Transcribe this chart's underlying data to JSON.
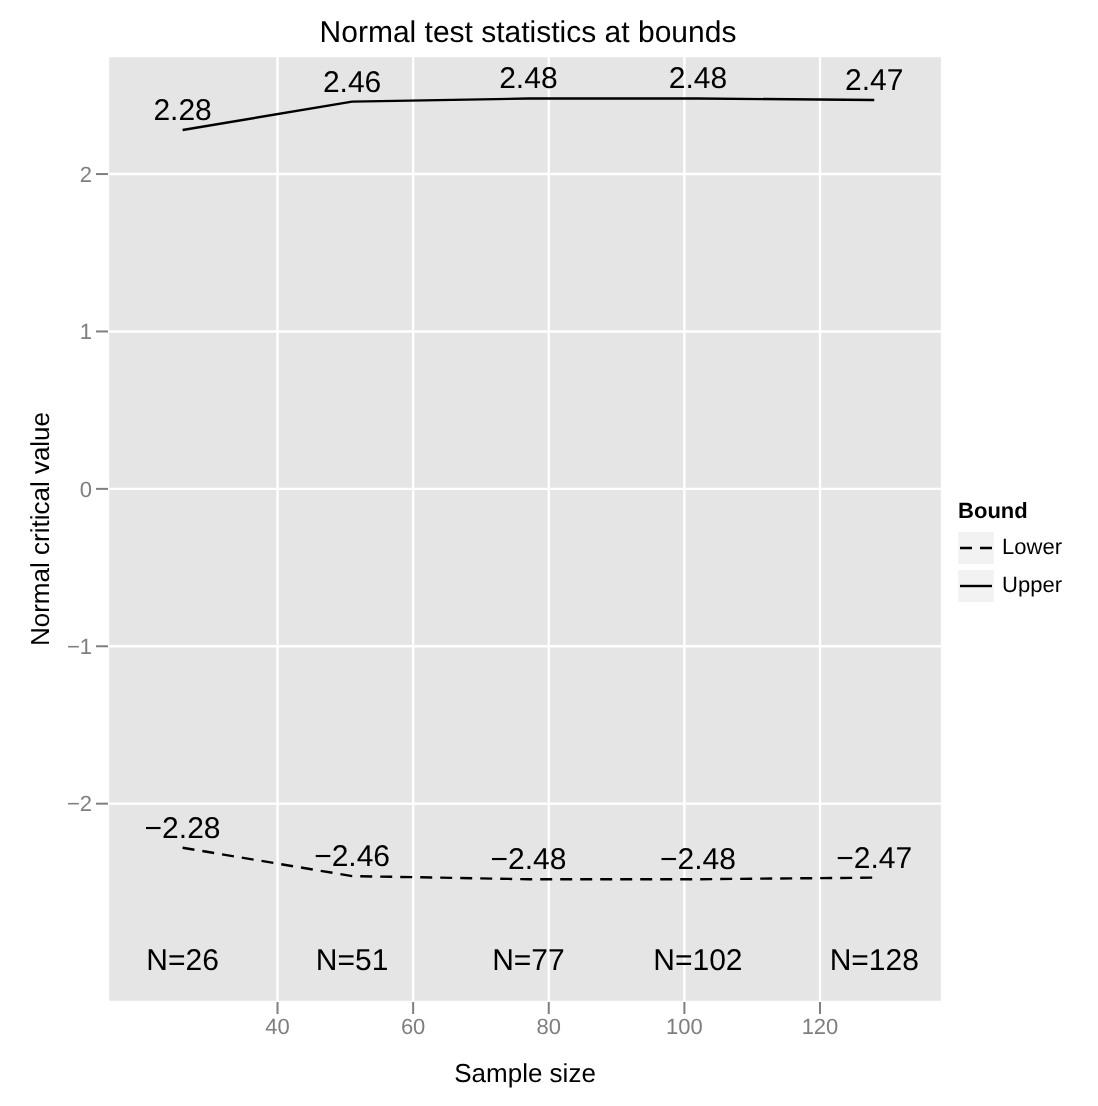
{
  "chart_data": {
    "type": "line",
    "title": "Normal test statistics at bounds",
    "xlabel": "Sample size",
    "ylabel": "Normal critical value",
    "legend_title": "Bound",
    "x": [
      26,
      51,
      77,
      102,
      128
    ],
    "series": [
      {
        "name": "Lower",
        "color": "#000000",
        "line_style": "dashed",
        "values": [
          -2.28,
          -2.46,
          -2.48,
          -2.48,
          -2.47
        ]
      },
      {
        "name": "Upper",
        "color": "#000000",
        "line_style": "solid",
        "values": [
          2.28,
          2.46,
          2.48,
          2.48,
          2.47
        ]
      }
    ],
    "data_labels": true,
    "marker": "none",
    "grid": true,
    "legend": "right",
    "xlim": [
      15,
      138
    ],
    "xticks": [
      40,
      60,
      80,
      100,
      120
    ],
    "ylim": [
      -3.26,
      2.75
    ],
    "yticks": [
      -2,
      -1,
      0,
      1,
      2
    ],
    "annotations": [
      "N=26",
      "N=51",
      "N=77",
      "N=102",
      "N=128"
    ]
  }
}
